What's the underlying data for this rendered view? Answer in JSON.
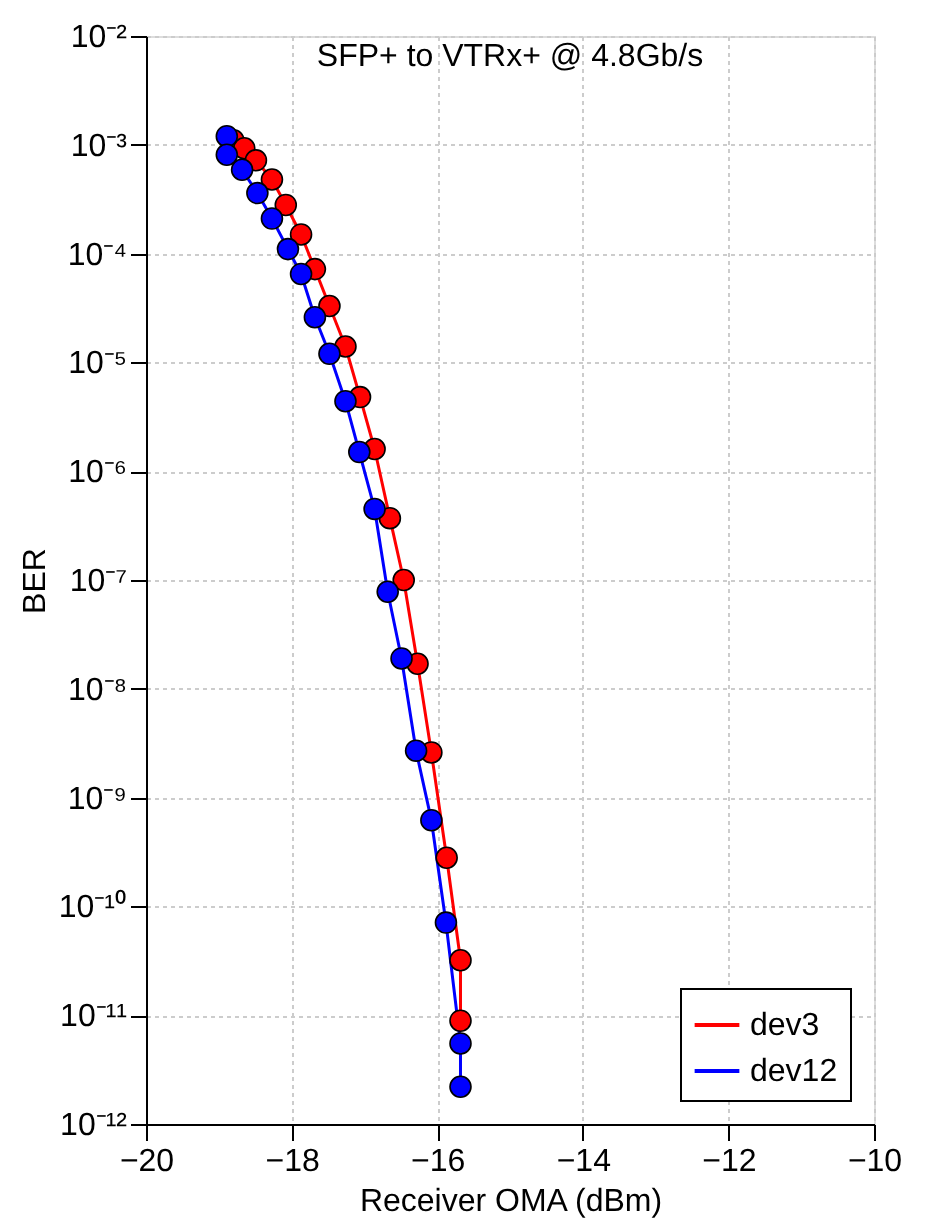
{
  "chart_data": {
    "type": "line",
    "title": "SFP+ to VTRx+ @ 4.8Gb/s",
    "xlabel": "Receiver OMA (dBm)",
    "ylabel": "BER",
    "log": "y",
    "grid": true,
    "legend": "bottom right",
    "marker": "circle",
    "line_style": "solid",
    "xlim": [
      -20,
      -10
    ],
    "xticks": [
      -20,
      -18,
      -16,
      -14,
      -12,
      -10
    ],
    "ylim": [
      1e-12,
      0.01
    ],
    "yticks": [
      {
        "value": 1e-12,
        "label": "10⁻¹²"
      },
      {
        "value": 1e-11,
        "label": "10⁻¹¹"
      },
      {
        "value": 1e-10,
        "label": "10⁻¹⁰"
      },
      {
        "value": 1e-09,
        "label": "10⁻⁹"
      },
      {
        "value": 1e-08,
        "label": "10⁻⁸"
      },
      {
        "value": 1e-07,
        "label": "10⁻⁷"
      },
      {
        "value": 1e-06,
        "label": "10⁻⁶"
      },
      {
        "value": 1e-05,
        "label": "10⁻⁵"
      },
      {
        "value": 0.0001,
        "label": "10⁻⁴"
      },
      {
        "value": 0.001,
        "label": "10⁻³"
      },
      {
        "value": 0.01,
        "label": "10⁻²"
      }
    ],
    "series": [
      {
        "name": "dev3",
        "color": "#ff0000",
        "x": [
          -18.8,
          -18.65,
          -18.49,
          -18.27,
          -18.08,
          -17.87,
          -17.68,
          -17.48,
          -17.26,
          -17.06,
          -16.86,
          -16.65,
          -16.46,
          -16.27,
          -16.08,
          -15.87,
          -15.68,
          -15.68
        ],
        "values": [
          0.0011,
          0.00093,
          0.00072,
          0.00048,
          0.00028,
          0.00015,
          7.2e-05,
          3.3e-05,
          1.4e-05,
          4.8e-06,
          1.6e-06,
          3.7e-07,
          1e-07,
          1.7e-08,
          2.6e-09,
          2.8e-10,
          3.2e-11,
          8.9e-12
        ]
      },
      {
        "name": "dev12",
        "color": "#0000ff",
        "x": [
          -18.89,
          -18.89,
          -18.68,
          -18.47,
          -18.27,
          -18.05,
          -17.87,
          -17.68,
          -17.48,
          -17.26,
          -17.07,
          -16.86,
          -16.68,
          -16.49,
          -16.29,
          -16.08,
          -15.88,
          -15.68,
          -15.68
        ],
        "values": [
          0.0012,
          0.00081,
          0.00059,
          0.00036,
          0.00021,
          0.00011,
          6.5e-05,
          2.6e-05,
          1.2e-05,
          4.4e-06,
          1.5e-06,
          4.5e-07,
          7.8e-08,
          1.9e-08,
          2.7e-09,
          6.2e-10,
          7.1e-11,
          5.5e-12,
          2.2e-12
        ]
      }
    ]
  }
}
